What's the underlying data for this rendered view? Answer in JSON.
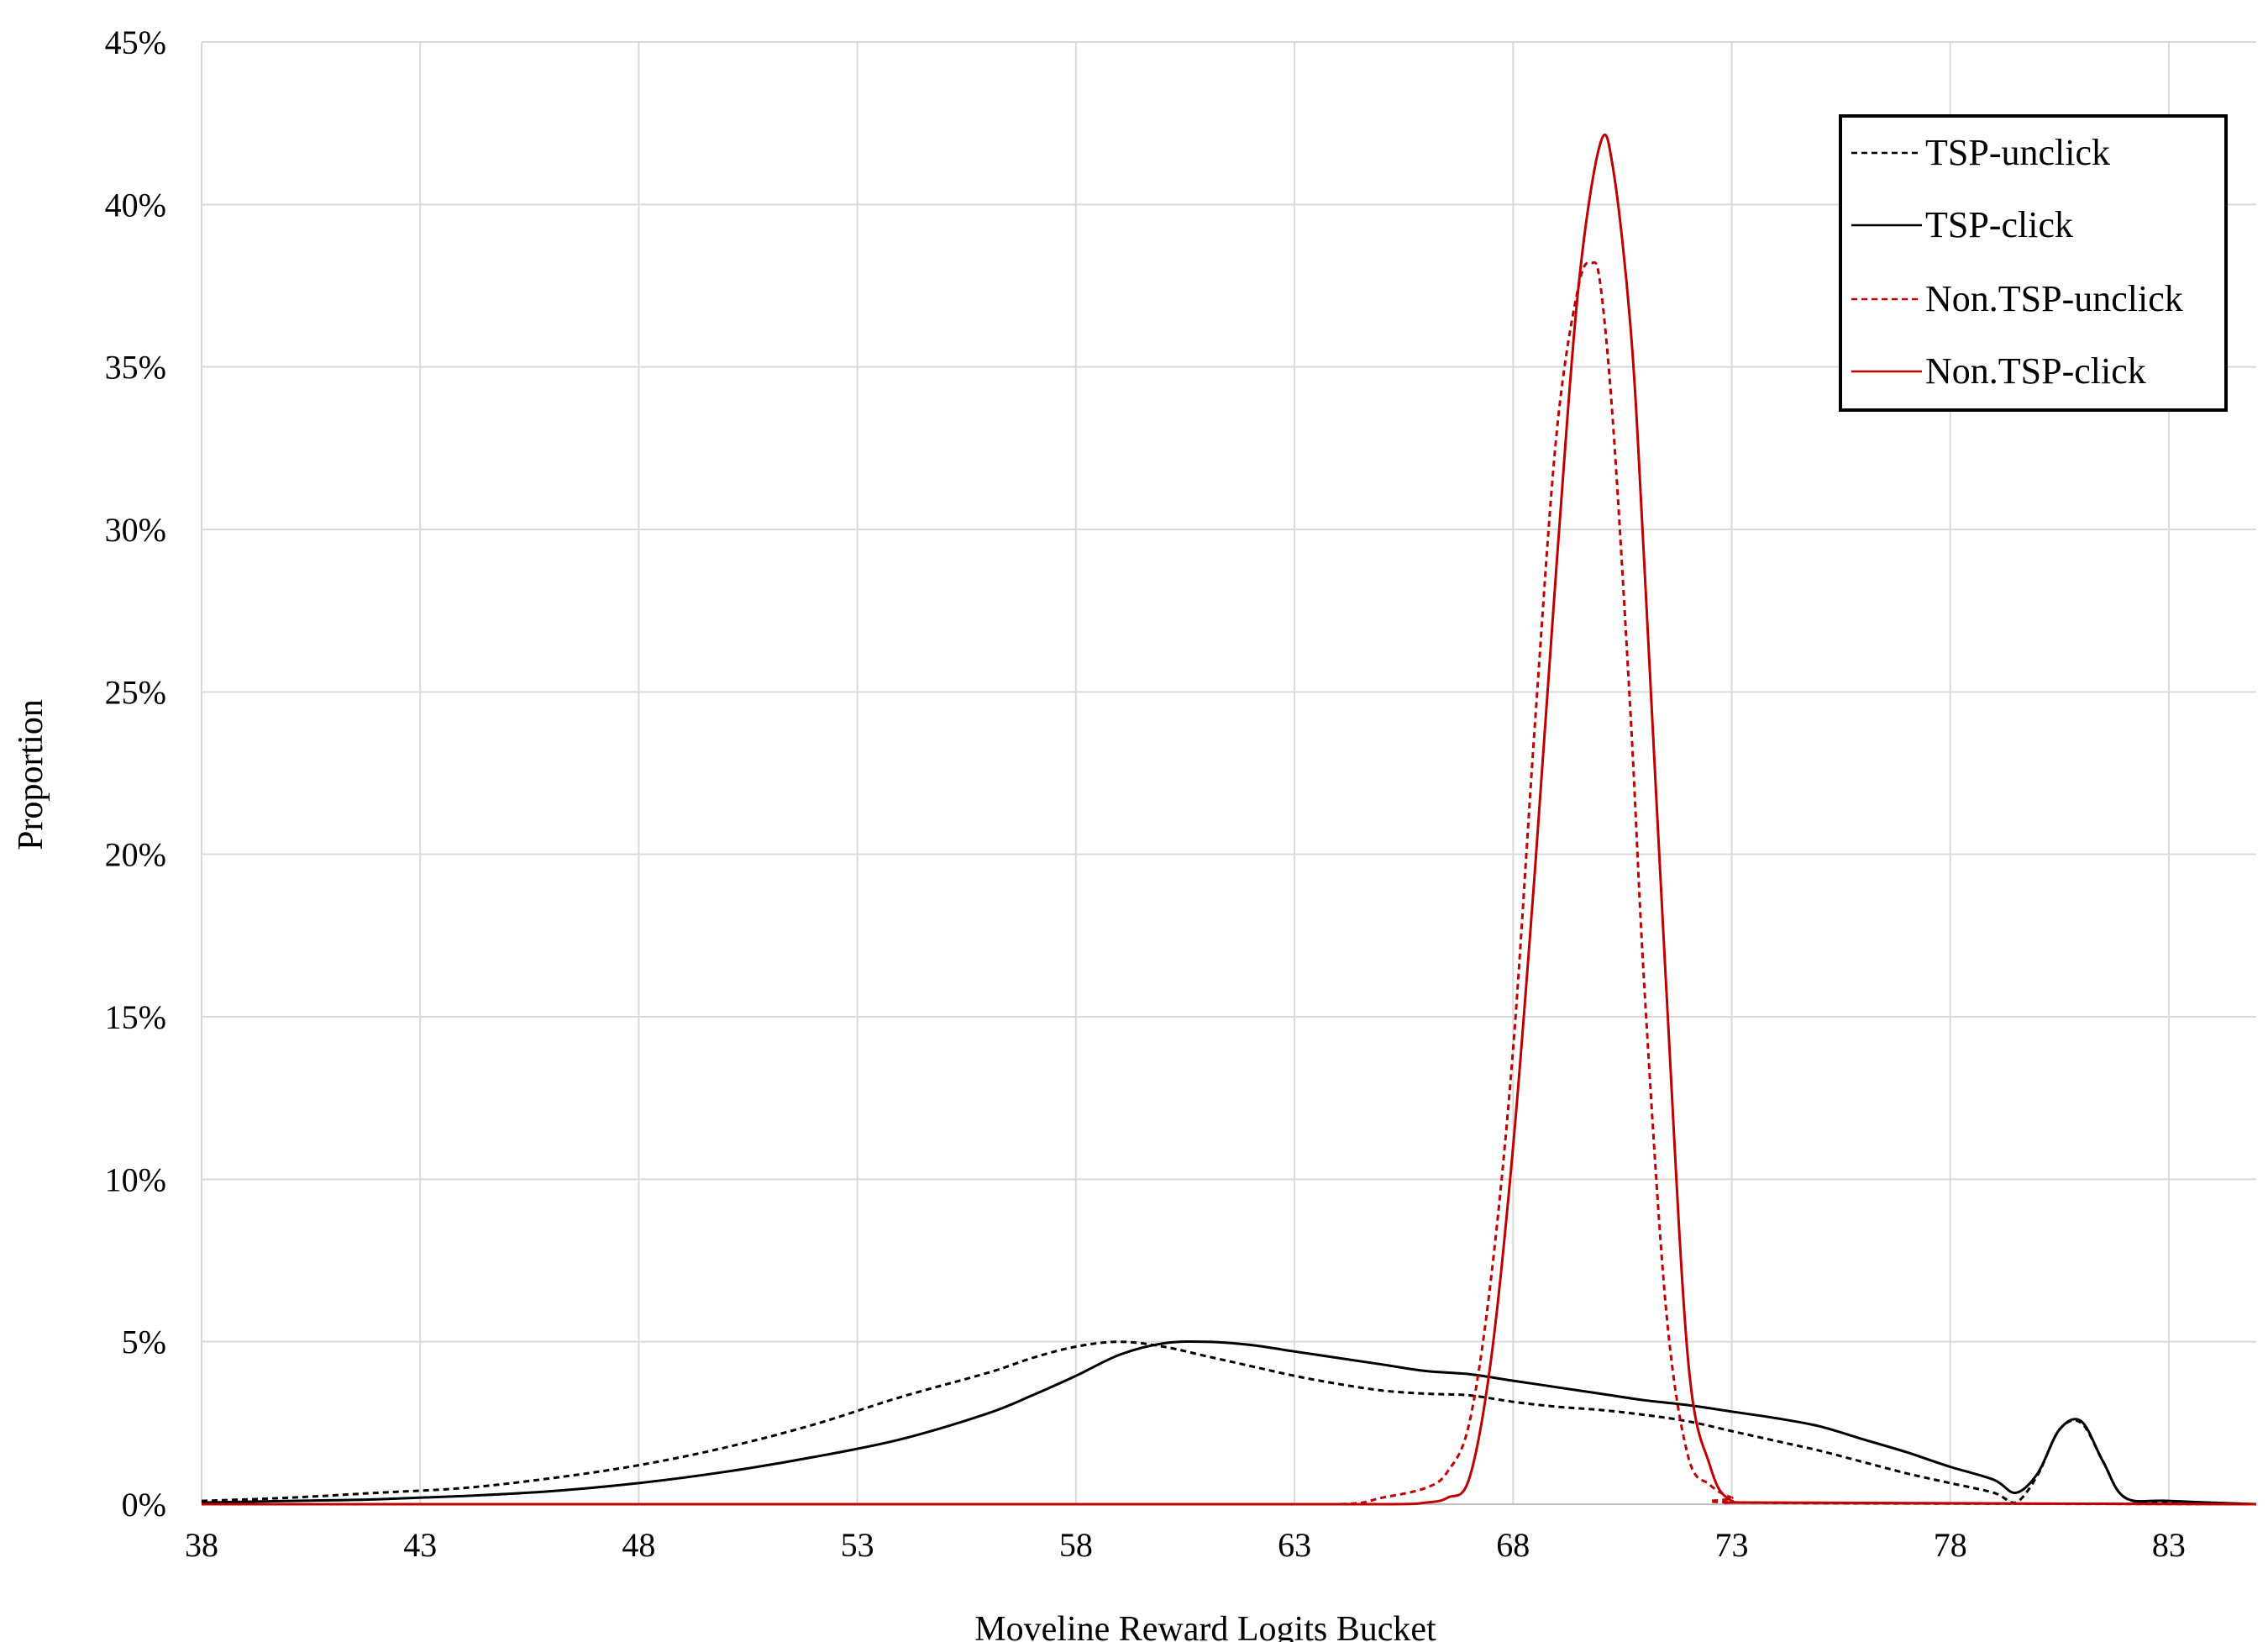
{
  "chart_data": {
    "type": "line",
    "title": "",
    "xlabel": "Moveline Reward Logits Bucket",
    "ylabel": "Proportion",
    "xlim": [
      38,
      85
    ],
    "ylim": [
      0,
      45
    ],
    "x_ticks": [
      38,
      43,
      48,
      53,
      58,
      63,
      68,
      73,
      78,
      83
    ],
    "y_ticks": [
      0,
      5,
      10,
      15,
      20,
      25,
      30,
      35,
      40,
      45
    ],
    "y_tick_labels": [
      "0%",
      "5%",
      "10%",
      "15%",
      "20%",
      "25%",
      "30%",
      "35%",
      "40%",
      "45%"
    ],
    "grid": true,
    "legend_position": "top-right",
    "series": [
      {
        "name": "TSP-unclick",
        "color": "#000000",
        "dash": "dashed",
        "x": [
          38,
          40,
          42,
          44,
          46,
          48,
          50,
          52,
          54,
          56,
          57,
          58,
          59,
          60,
          61,
          62,
          63,
          64,
          65,
          66,
          67,
          68,
          69,
          70,
          71,
          72,
          73,
          74,
          75,
          76,
          77,
          78,
          79,
          79.5,
          80,
          80.5,
          81,
          81.5,
          82,
          83,
          85
        ],
        "y": [
          0.1,
          0.2,
          0.35,
          0.5,
          0.8,
          1.2,
          1.75,
          2.45,
          3.3,
          4.05,
          4.5,
          4.85,
          5.0,
          4.85,
          4.55,
          4.25,
          3.95,
          3.7,
          3.5,
          3.4,
          3.35,
          3.15,
          3.0,
          2.9,
          2.75,
          2.55,
          2.25,
          1.95,
          1.65,
          1.3,
          0.95,
          0.65,
          0.35,
          0.05,
          0.9,
          2.3,
          2.5,
          1.3,
          0.2,
          0.05,
          0.0
        ]
      },
      {
        "name": "TSP-click",
        "color": "#000000",
        "dash": "solid",
        "x": [
          38,
          40,
          42,
          44,
          46,
          48,
          50,
          52,
          54,
          56,
          57,
          58,
          59,
          60,
          61,
          62,
          63,
          64,
          65,
          66,
          67,
          68,
          69,
          70,
          71,
          72,
          73,
          74,
          75,
          76,
          77,
          78,
          79,
          79.5,
          80,
          80.5,
          81,
          81.5,
          82,
          83,
          85
        ],
        "y": [
          0.05,
          0.1,
          0.15,
          0.25,
          0.4,
          0.65,
          1.0,
          1.45,
          2.0,
          2.8,
          3.35,
          3.95,
          4.6,
          4.95,
          5.0,
          4.9,
          4.7,
          4.5,
          4.3,
          4.1,
          4.0,
          3.8,
          3.6,
          3.4,
          3.2,
          3.05,
          2.85,
          2.65,
          2.4,
          2.0,
          1.6,
          1.15,
          0.75,
          0.35,
          0.95,
          2.3,
          2.55,
          1.3,
          0.2,
          0.1,
          0.0
        ]
      },
      {
        "name": "Non.TSP-unclick",
        "color": "#c00000",
        "dash": "dashed",
        "x": [
          38,
          60,
          64,
          65,
          66,
          66.5,
          67,
          67.5,
          68,
          68.5,
          69,
          69.5,
          69.8,
          70,
          70.3,
          70.7,
          71,
          71.5,
          72,
          72.5,
          73,
          73.5,
          85
        ],
        "y": [
          0,
          0,
          0,
          0.2,
          0.5,
          1.0,
          2.5,
          7,
          14,
          24,
          33,
          37.5,
          38.2,
          37.5,
          33,
          24,
          16,
          6,
          1.5,
          0.6,
          0.2,
          0.05,
          0
        ]
      },
      {
        "name": "Non.TSP-click",
        "color": "#c00000",
        "dash": "solid",
        "x": [
          38,
          60,
          65,
          66,
          66.5,
          67,
          67.5,
          68,
          68.5,
          69,
          69.5,
          70,
          70.3,
          70.7,
          71,
          71.5,
          72,
          72.5,
          73,
          74,
          85
        ],
        "y": [
          0,
          0,
          0,
          0.05,
          0.2,
          0.8,
          4.5,
          11,
          19.5,
          29,
          37.5,
          41.9,
          41,
          36,
          29,
          16,
          4.5,
          1.2,
          0.1,
          0.05,
          0
        ]
      }
    ]
  }
}
